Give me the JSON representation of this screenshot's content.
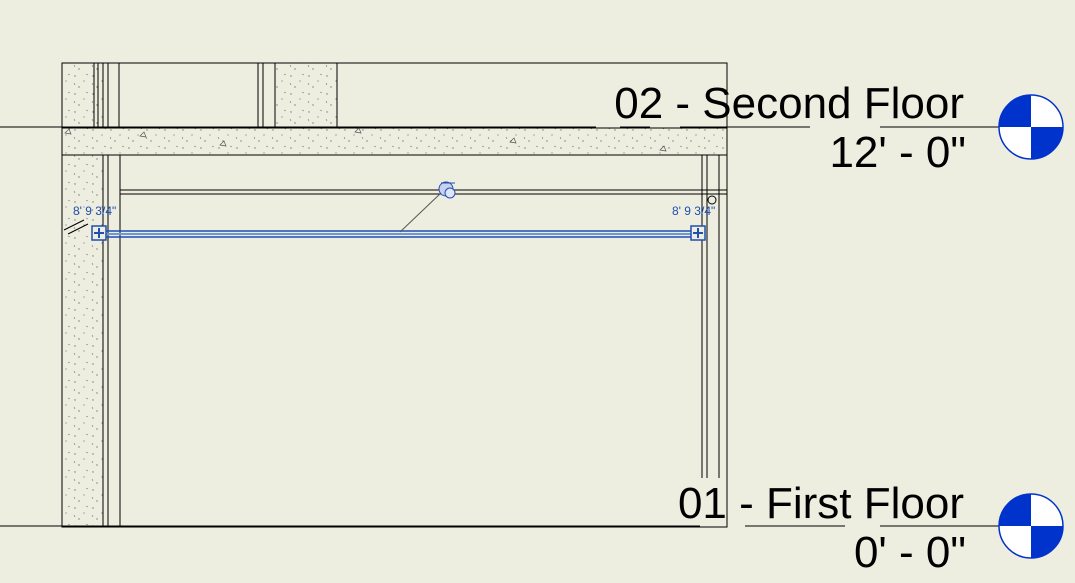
{
  "levels": [
    {
      "name": "02 - Second Floor",
      "elevation": "12' - 0\""
    },
    {
      "name": "01 - First Floor",
      "elevation": "0' - 0\""
    }
  ],
  "beam": {
    "left_height": "8'  9 3/4\"",
    "right_height": "8'  9 3/4\""
  },
  "colors": {
    "background": "#eeeee0",
    "selection": "#1f4fb0",
    "level_head": "#0033cc",
    "linework": "#000000"
  },
  "icons": {
    "level_head": "level-head-icon",
    "tag": "beam-tag-icon",
    "grip": "end-grip-icon"
  }
}
